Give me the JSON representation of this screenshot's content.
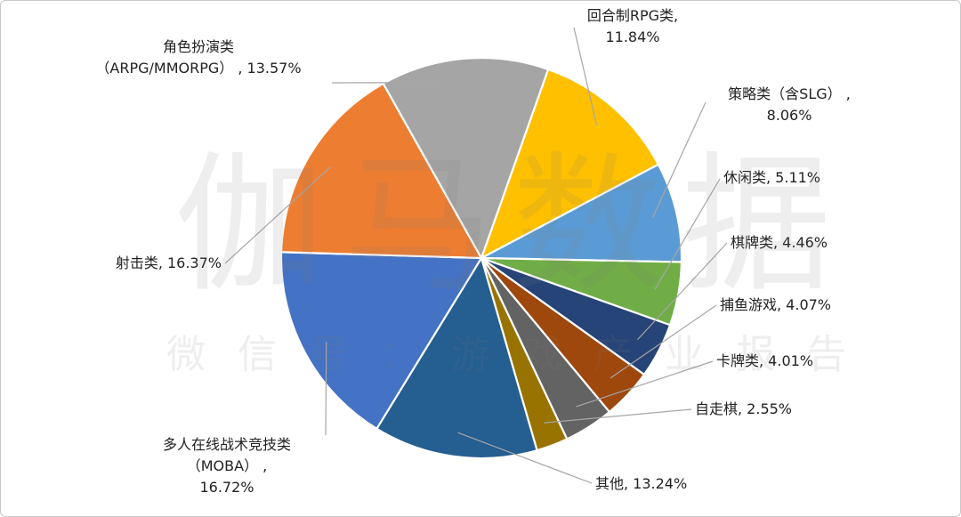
{
  "watermark": {
    "brand": "伽马数据",
    "subtitle": "微信号：游戏产业报告"
  },
  "chart_data": {
    "type": "pie",
    "title": "",
    "start_angle_deg": -70.5,
    "direction": "clockwise",
    "slices": [
      {
        "label": "回合制RPG类",
        "value": 11.84,
        "display": "11.84%",
        "color": "#FFC000"
      },
      {
        "label": "策略类（含SLG）",
        "value": 8.06,
        "display": "8.06%",
        "color": "#5B9BD5"
      },
      {
        "label": "休闲类",
        "value": 5.11,
        "display": "5.11%",
        "color": "#70AD47"
      },
      {
        "label": "棋牌类",
        "value": 4.46,
        "display": "4.46%",
        "color": "#264478"
      },
      {
        "label": "捕鱼游戏",
        "value": 4.07,
        "display": "4.07%",
        "color": "#9E480E"
      },
      {
        "label": "卡牌类",
        "value": 4.01,
        "display": "4.01%",
        "color": "#636363"
      },
      {
        "label": "自走棋",
        "value": 2.55,
        "display": "2.55%",
        "color": "#997300"
      },
      {
        "label": "其他",
        "value": 13.24,
        "display": "13.24%",
        "color": "#255E91"
      },
      {
        "label": "多人在线战术竞技类（MOBA）",
        "value": 16.72,
        "display": "16.72%",
        "color": "#4472C4"
      },
      {
        "label": "射击类",
        "value": 16.37,
        "display": "16.37%",
        "color": "#ED7D31"
      },
      {
        "label": "角色扮演类（ARPG/MMORPG）",
        "value": 13.57,
        "display": "13.57%",
        "color": "#A5A5A5"
      }
    ]
  }
}
